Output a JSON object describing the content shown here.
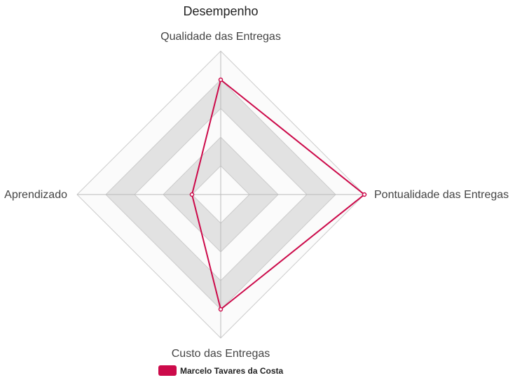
{
  "chart_data": {
    "type": "radar",
    "title": "Desempenho",
    "axes": [
      "Qualidade das Entregas",
      "Pontualidade das Entregas",
      "Custo das Entregas",
      "Aprendizado"
    ],
    "range": [
      0,
      5
    ],
    "rings": 5,
    "series": [
      {
        "name": "Marcelo Tavares da Costa",
        "values": [
          4,
          5,
          4,
          1
        ]
      }
    ],
    "legend_position": "bottom",
    "colors": {
      "series": "#cc0a4a",
      "band_fill": "#e2e2e2",
      "band_alt_fill": "#fbfbfb",
      "grid_line": "#cccccc",
      "spoke": "#bbbbbb"
    }
  }
}
